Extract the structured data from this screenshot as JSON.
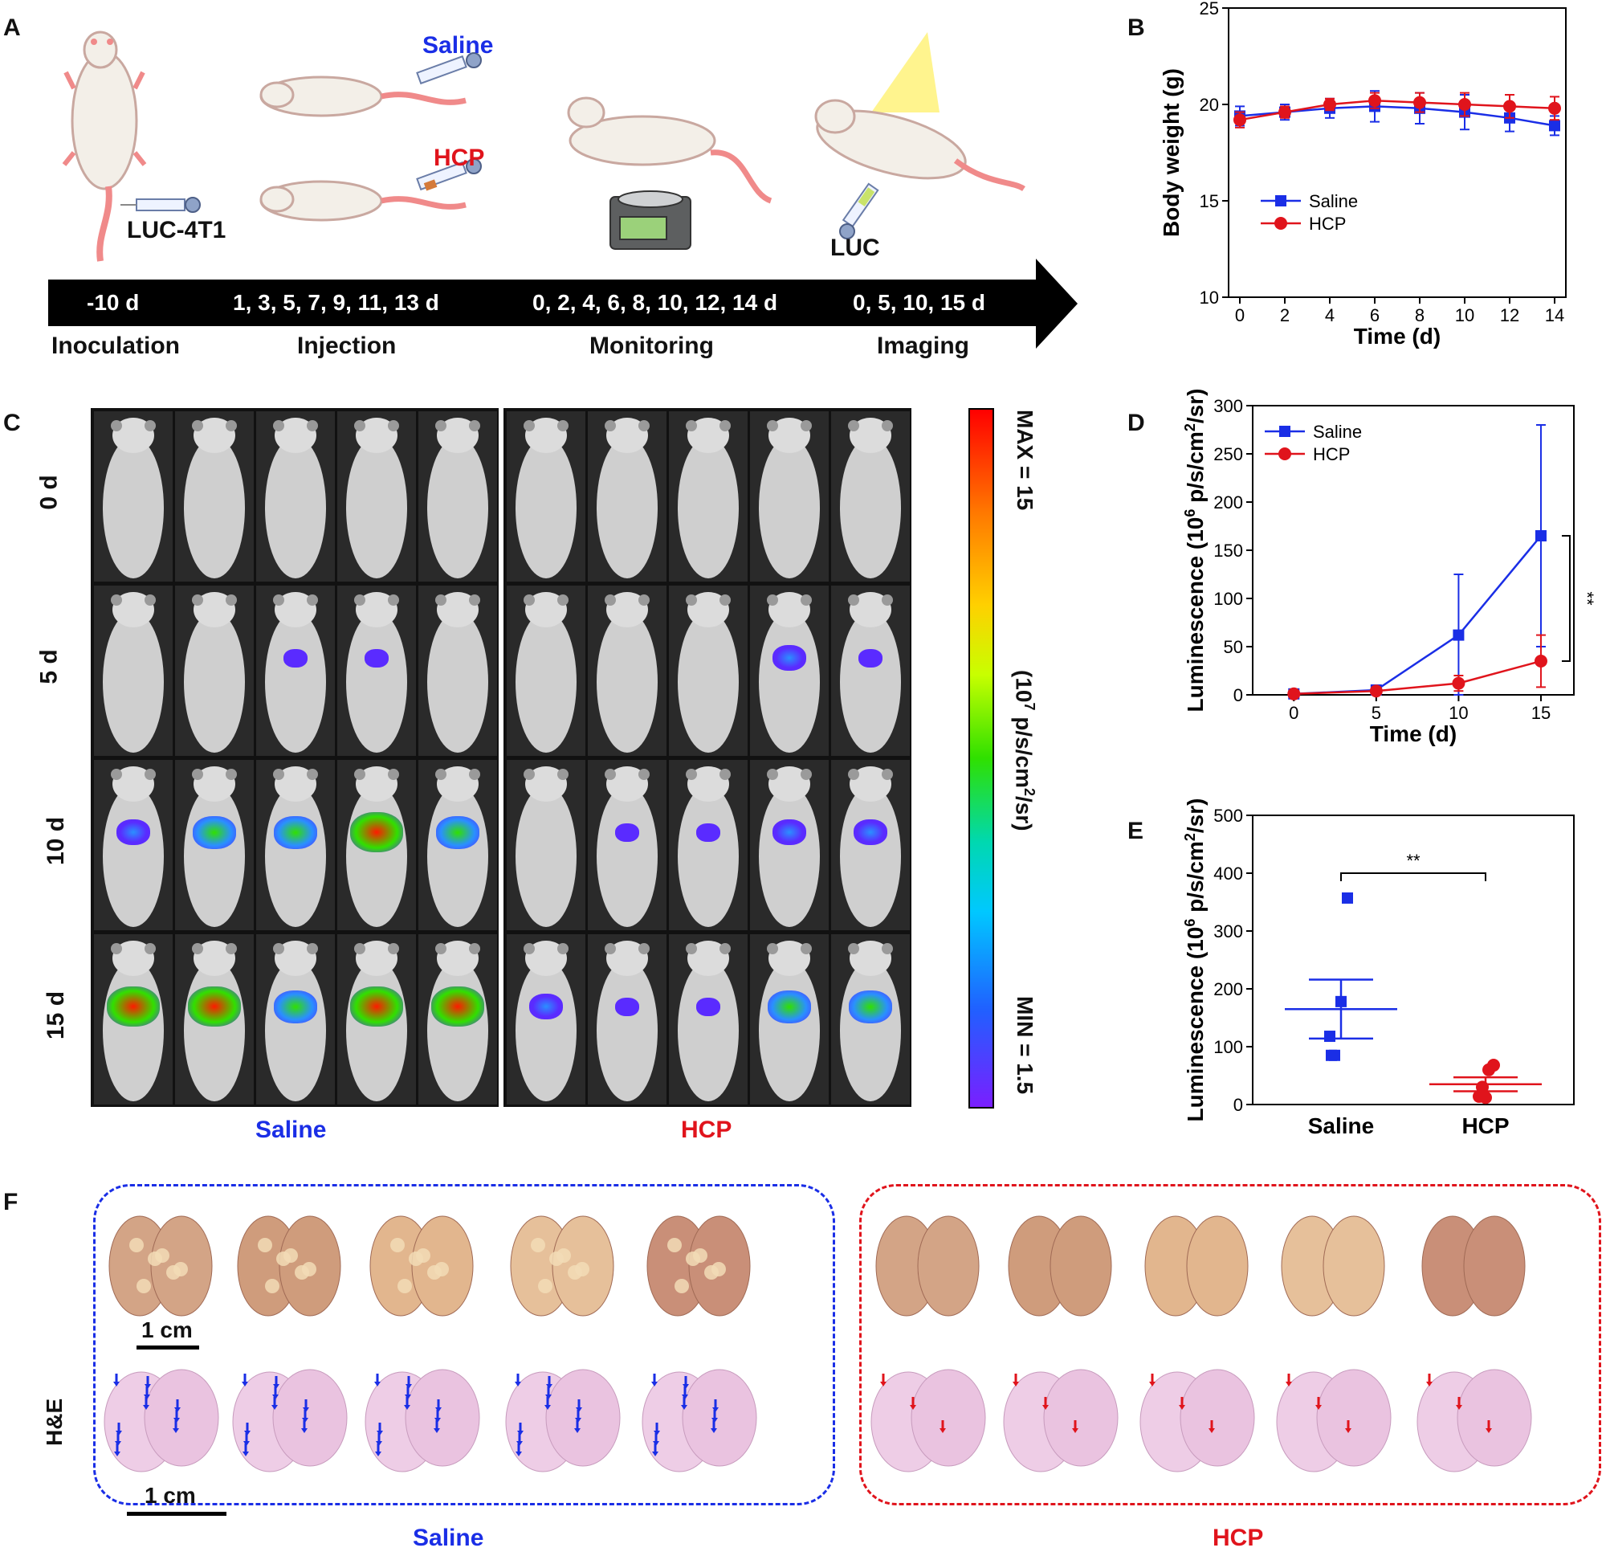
{
  "panel_letters": {
    "a": "A",
    "b": "B",
    "c": "C",
    "d": "D",
    "e": "E",
    "f": "F"
  },
  "panel_a": {
    "group_labels": {
      "saline": "Saline",
      "hcp": "HCP",
      "cells": "LUC-4T1",
      "luc": "LUC"
    },
    "timeline": [
      {
        "days": "-10 d",
        "stage": "Inoculation"
      },
      {
        "days": "1, 3, 5, 7, 9, 11, 13 d",
        "stage": "Injection"
      },
      {
        "days": "0, 2, 4, 6, 8, 10, 12, 14 d",
        "stage": "Monitoring"
      },
      {
        "days": "0, 5, 10, 15 d",
        "stage": "Imaging"
      }
    ],
    "colors": {
      "saline": "#1a2ee6",
      "hcp": "#e0141c",
      "mouse_body": "#f3efe8",
      "mouse_outline": "#c9a8a0",
      "tail": "#f08a8a",
      "light": "#fff27a"
    }
  },
  "panel_c": {
    "row_labels": [
      "0 d",
      "5 d",
      "10 d",
      "15 d"
    ],
    "group_labels": [
      "Saline",
      "HCP"
    ],
    "colorbar": {
      "max_label": "MAX = 15",
      "unit_label_pre": "(10",
      "unit_sup": "7",
      "unit_label_post": " p/s/cm",
      "unit_sup2": "2",
      "unit_label_end": "/sr)",
      "min_label": "MIN = 1.5"
    }
  },
  "panel_f": {
    "scale_top": "1 cm",
    "scale_bottom": "1 cm",
    "row_label": "H&E",
    "group_labels": [
      "Saline",
      "HCP"
    ]
  },
  "chart_data": [
    {
      "panel": "B",
      "type": "line",
      "title": "",
      "xlabel": "Time (d)",
      "ylabel": "Body weight (g)",
      "xlim": [
        -0.5,
        14.5
      ],
      "ylim": [
        10,
        25
      ],
      "xticks": [
        0,
        2,
        4,
        6,
        8,
        10,
        12,
        14
      ],
      "yticks": [
        10,
        15,
        20,
        25
      ],
      "legend_position": "left-bottom",
      "series": [
        {
          "name": "Saline",
          "color": "#1a2ee6",
          "marker": "square",
          "x": [
            0,
            2,
            4,
            6,
            8,
            10,
            12,
            14
          ],
          "values": [
            19.4,
            19.6,
            19.8,
            19.9,
            19.8,
            19.6,
            19.3,
            18.9
          ],
          "err": [
            0.5,
            0.4,
            0.5,
            0.8,
            0.8,
            0.9,
            0.7,
            0.5
          ]
        },
        {
          "name": "HCP",
          "color": "#e0141c",
          "marker": "circle",
          "x": [
            0,
            2,
            4,
            6,
            8,
            10,
            12,
            14
          ],
          "values": [
            19.2,
            19.6,
            20.0,
            20.2,
            20.1,
            20.0,
            19.9,
            19.8
          ],
          "err": [
            0.4,
            0.3,
            0.3,
            0.4,
            0.5,
            0.6,
            0.6,
            0.6
          ]
        }
      ]
    },
    {
      "panel": "D",
      "type": "line",
      "title": "",
      "xlabel": "Time (d)",
      "ylabel_pre": "Luminescence (10",
      "ylabel_sup": "6",
      "ylabel_mid": " p/s/cm",
      "ylabel_sup2": "2",
      "ylabel_end": "/sr)",
      "xlim": [
        -2.5,
        17
      ],
      "ylim": [
        0,
        300
      ],
      "xticks": [
        0,
        5,
        10,
        15
      ],
      "yticks": [
        0,
        50,
        100,
        150,
        200,
        250,
        300
      ],
      "legend_position": "top-left",
      "significance": "**",
      "series": [
        {
          "name": "Saline",
          "color": "#1a2ee6",
          "marker": "square",
          "x": [
            0,
            5,
            10,
            15
          ],
          "values": [
            1,
            5,
            62,
            165
          ],
          "err": [
            0.5,
            1.5,
            63,
            115
          ]
        },
        {
          "name": "HCP",
          "color": "#e0141c",
          "marker": "circle",
          "x": [
            0,
            5,
            10,
            15
          ],
          "values": [
            1,
            4,
            12,
            35
          ],
          "err": [
            0.5,
            1,
            8,
            27
          ]
        }
      ]
    },
    {
      "panel": "E",
      "type": "scatter",
      "title": "",
      "xlabel": "",
      "ylabel_pre": "Luminescence (10",
      "ylabel_sup": "6",
      "ylabel_mid": " p/s/cm",
      "ylabel_sup2": "2",
      "ylabel_end": "/sr)",
      "ylim": [
        0,
        500
      ],
      "yticks": [
        0,
        100,
        200,
        300,
        400,
        500
      ],
      "categories": [
        "Saline",
        "HCP"
      ],
      "significance": "**",
      "series": [
        {
          "name": "Saline",
          "color": "#1a2ee6",
          "marker": "square",
          "points": [
            357,
            178,
            118,
            85,
            85
          ],
          "mean": 165,
          "sem": 51
        },
        {
          "name": "HCP",
          "color": "#e0141c",
          "marker": "circle",
          "points": [
            68,
            60,
            30,
            14,
            12
          ],
          "mean": 35,
          "sem": 12
        }
      ]
    }
  ]
}
